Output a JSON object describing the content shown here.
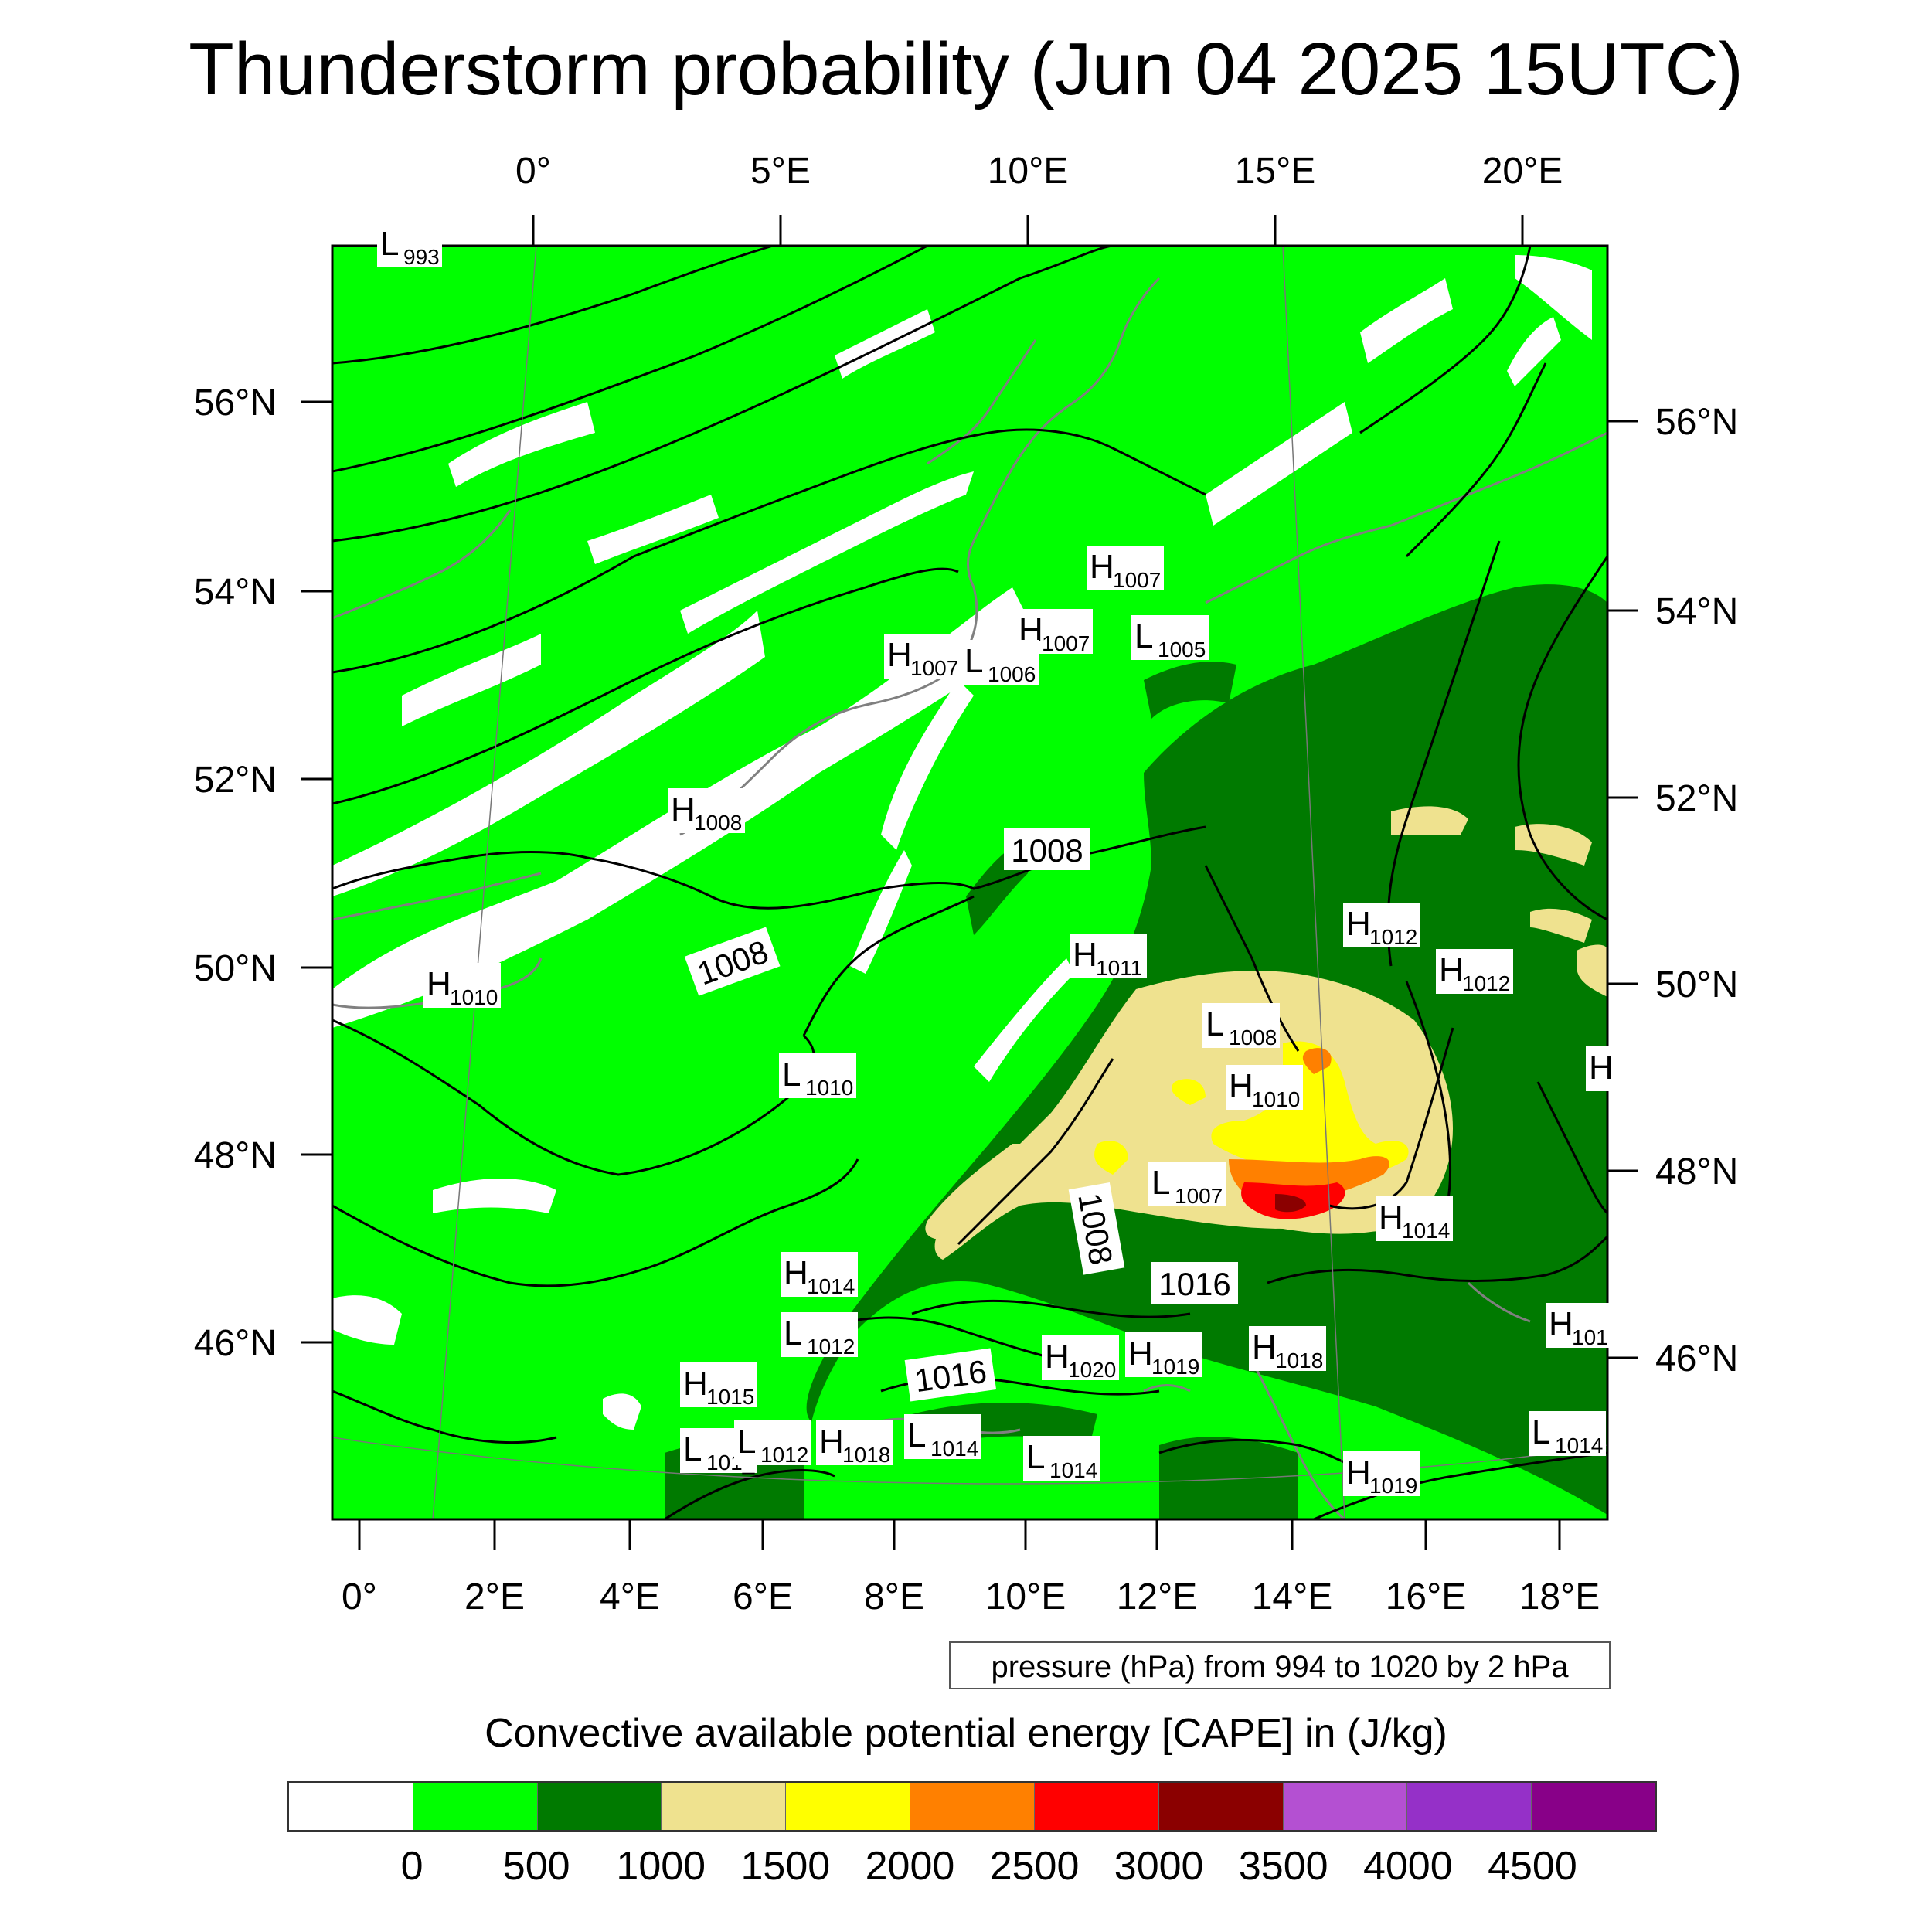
{
  "title": "Thunderstorm probability (Jun 04 2025 15UTC)",
  "top_axis_labels": [
    "0°",
    "5°E",
    "10°E",
    "15°E",
    "20°E"
  ],
  "bottom_axis_labels": [
    "0°",
    "2°E",
    "4°E",
    "6°E",
    "8°E",
    "10°E",
    "12°E",
    "14°E",
    "16°E",
    "18°E"
  ],
  "left_axis_labels": [
    "56°N",
    "54°N",
    "52°N",
    "50°N",
    "48°N",
    "46°N"
  ],
  "right_axis_labels": [
    "56°N",
    "54°N",
    "52°N",
    "50°N",
    "48°N",
    "46°N"
  ],
  "pressure_note": "pressure (hPa) from 994 to 1020 by 2 hPa",
  "legend": {
    "title": "Convective available potential energy [CAPE] in (J/kg)",
    "colors": [
      "#ffffff",
      "#00ff00",
      "#007a00",
      "#efe28f",
      "#ffff00",
      "#ff8000",
      "#ff0000",
      "#8b0000",
      "#b450d2",
      "#9530c8",
      "#880088"
    ],
    "ticks": [
      "0",
      "500",
      "1000",
      "1500",
      "2000",
      "2500",
      "3000",
      "3500",
      "4000",
      "4500"
    ]
  },
  "map": {
    "colors": {
      "background_cape": "#00ff00",
      "no_cape": "#ffffff",
      "cape_500": "#007a00",
      "cape_1000": "#efe28f",
      "cape_1500": "#ffff00",
      "cape_2000": "#ff8000",
      "cape_2500": "#ff0000",
      "cape_3000": "#8b0000",
      "coastline": "#808080",
      "isobar": "#000000"
    },
    "isobar_labels": [
      "1008",
      "1008",
      "1008",
      "1016",
      "1016"
    ],
    "pressure_systems": [
      {
        "type": "L",
        "value": "993"
      },
      {
        "type": "H",
        "value": "1007"
      },
      {
        "type": "H",
        "value": "1007"
      },
      {
        "type": "L",
        "value": "1005"
      },
      {
        "type": "H",
        "value": "1007"
      },
      {
        "type": "L",
        "value": "1006"
      },
      {
        "type": "H",
        "value": "1008"
      },
      {
        "type": "H",
        "value": "1012"
      },
      {
        "type": "H",
        "value": "1011"
      },
      {
        "type": "H",
        "value": "1012"
      },
      {
        "type": "H",
        "value": "1010"
      },
      {
        "type": "L",
        "value": "1008"
      },
      {
        "type": "H",
        "value": "1010"
      },
      {
        "type": "L",
        "value": "1010"
      },
      {
        "type": "L",
        "value": "1007"
      },
      {
        "type": "H",
        "value": "1014"
      },
      {
        "type": "H",
        "value": "1014"
      },
      {
        "type": "L",
        "value": "1012"
      },
      {
        "type": "H",
        "value": "1020"
      },
      {
        "type": "H",
        "value": "1019"
      },
      {
        "type": "H",
        "value": "1018"
      },
      {
        "type": "H",
        "value": "101"
      },
      {
        "type": "H",
        "value": "1015"
      },
      {
        "type": "L",
        "value": "101_"
      },
      {
        "type": "L",
        "value": "1012"
      },
      {
        "type": "H",
        "value": "1018"
      },
      {
        "type": "L",
        "value": "1014"
      },
      {
        "type": "L",
        "value": "1014"
      },
      {
        "type": "H",
        "value": "1019"
      },
      {
        "type": "L",
        "value": "1014"
      },
      {
        "type": "H",
        "value": ""
      }
    ]
  }
}
